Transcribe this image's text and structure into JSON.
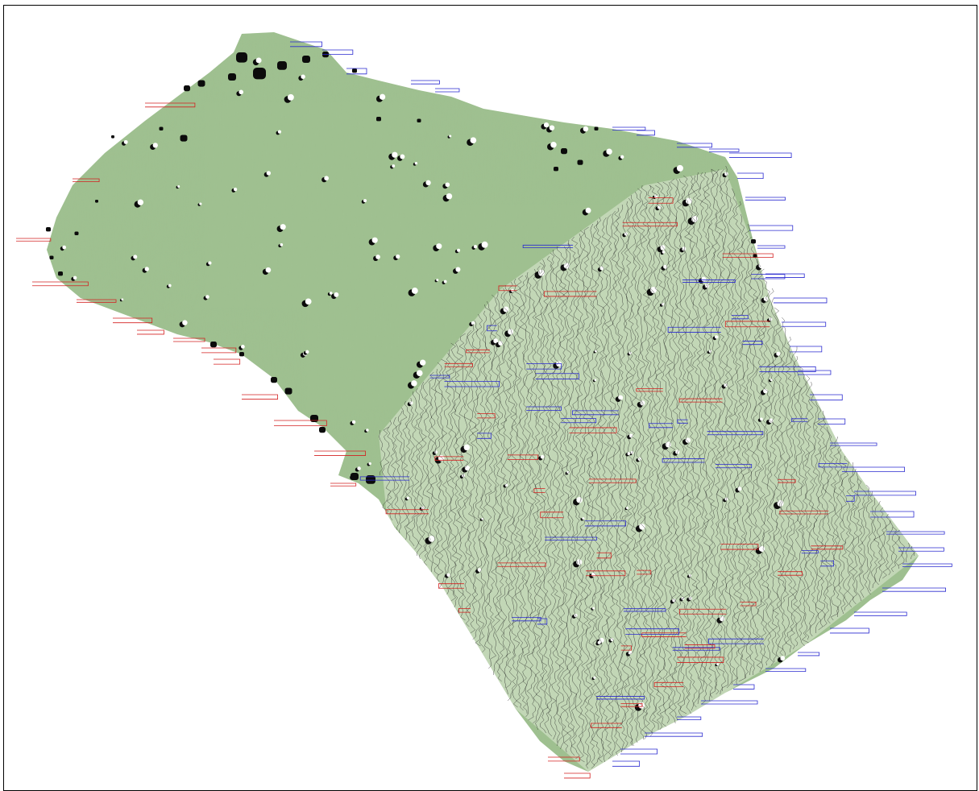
{
  "map": {
    "kind": "magnetometry survey overlay (greyscale-green plot + trace plot)",
    "colors": {
      "survey_fill": "#9fbf8f",
      "survey_fill_light": "#b9d0ac",
      "anomaly_dark": "#0b0b0b",
      "anomaly_light": "#ffffff",
      "trace_neutral": "#222222",
      "trace_positive": "#2a2ad0",
      "trace_negative": "#d42020",
      "frame": "#000000",
      "background": "#ffffff"
    },
    "layers": [
      "greyscale-plot",
      "trace-plot"
    ]
  }
}
